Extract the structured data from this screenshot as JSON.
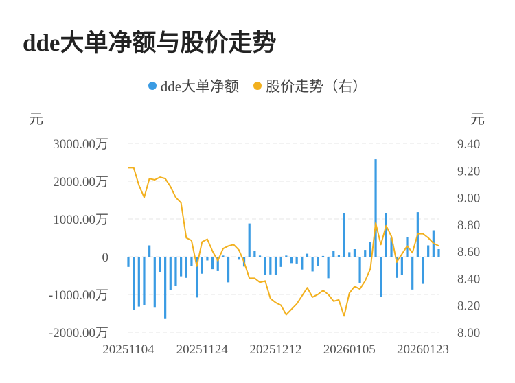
{
  "title": "dde大单净额与股价走势",
  "legend": {
    "series1": "dde大单净额",
    "series2": "股价走势（右）"
  },
  "units": {
    "left": "元",
    "right": "元"
  },
  "colors": {
    "bar": "#3A9BE3",
    "line": "#F2B01E",
    "grid": "#e6e6e6"
  },
  "chart_data": {
    "type": "bar+line",
    "left_axis": {
      "ticks": [
        "3000.00万",
        "2000.00万",
        "1000.00万",
        "0",
        "-1000.00万",
        "-2000.00万"
      ],
      "ylim": [
        -2000,
        3000
      ],
      "unit": "万"
    },
    "right_axis": {
      "ticks": [
        "9.40",
        "9.20",
        "9.00",
        "8.80",
        "8.60",
        "8.40",
        "8.20",
        "8.00"
      ],
      "ylim": [
        8.0,
        9.4
      ]
    },
    "x_tick_labels": [
      "20251104",
      "20251124",
      "20251212",
      "20260105",
      "20260123"
    ],
    "x_tick_index": [
      0,
      14,
      28,
      42,
      56
    ],
    "series": [
      {
        "name": "dde大单净额",
        "type": "bar",
        "values": [
          -270,
          -1400,
          -1320,
          -1280,
          300,
          -1350,
          -400,
          -1650,
          -880,
          -780,
          -520,
          -560,
          -240,
          -1080,
          -450,
          -100,
          -330,
          -380,
          30,
          -680,
          0,
          -80,
          -260,
          880,
          150,
          30,
          -490,
          -470,
          -490,
          -270,
          30,
          -170,
          -180,
          -340,
          80,
          -390,
          -240,
          20,
          -570,
          160,
          50,
          1150,
          120,
          200,
          -690,
          180,
          400,
          2580,
          -1060,
          1150,
          500,
          -560,
          -490,
          520,
          -870,
          1180,
          -720,
          300,
          700,
          200
        ],
        "unit": "万"
      },
      {
        "name": "股价走势（右）",
        "type": "line",
        "values": [
          9.22,
          9.22,
          9.09,
          9.0,
          9.14,
          9.13,
          9.15,
          9.14,
          9.08,
          9.0,
          8.96,
          8.7,
          8.68,
          8.49,
          8.67,
          8.69,
          8.6,
          8.53,
          8.62,
          8.64,
          8.65,
          8.61,
          8.52,
          8.4,
          8.4,
          8.37,
          8.38,
          8.25,
          8.22,
          8.2,
          8.13,
          8.17,
          8.21,
          8.27,
          8.33,
          8.26,
          8.28,
          8.31,
          8.28,
          8.23,
          8.24,
          8.12,
          8.29,
          8.34,
          8.32,
          8.38,
          8.47,
          8.81,
          8.65,
          8.79,
          8.71,
          8.52,
          8.58,
          8.64,
          8.59,
          8.73,
          8.73,
          8.7,
          8.66,
          8.64
        ]
      }
    ]
  }
}
